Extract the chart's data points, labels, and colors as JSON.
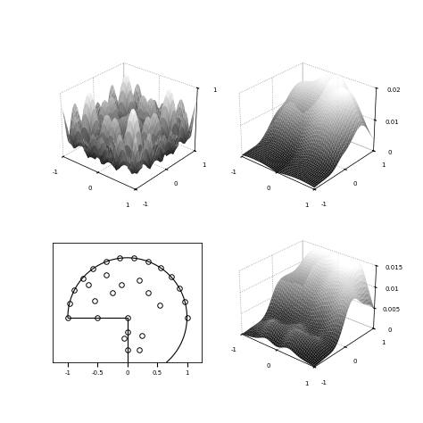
{
  "figsize": [
    4.74,
    4.74
  ],
  "dpi": 100,
  "background": "white",
  "tl_zlim": [
    0,
    1
  ],
  "tl_zticks": [
    1
  ],
  "tr_zlim": [
    0,
    0.02
  ],
  "tr_zticks": [
    0,
    0.01,
    0.02
  ],
  "br_zlim": [
    0,
    0.015
  ],
  "br_zticks": [
    0,
    0.005,
    0.01,
    0.015
  ],
  "elev": 28,
  "azim": -50,
  "tick_fontsize": 5,
  "scatter_xticks": [
    -1,
    -0.5,
    0,
    0.5,
    1
  ],
  "scatter_xlim": [
    -1.25,
    1.25
  ],
  "scatter_ylim": [
    -0.75,
    1.25
  ]
}
